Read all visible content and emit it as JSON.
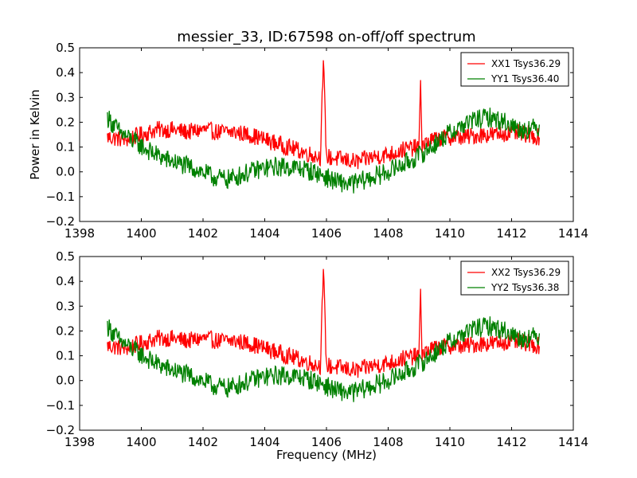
{
  "figure": {
    "title": "messier_33, ID:67598 on-off/off spectrum"
  },
  "chart_data": [
    {
      "type": "line",
      "title": "messier_33, ID:67598 on-off/off spectrum",
      "xlabel": "",
      "ylabel": "Power in Kelvin",
      "xlim": [
        1398,
        1414
      ],
      "ylim": [
        -0.2,
        0.5
      ],
      "xticks": [
        "1398",
        "1400",
        "1402",
        "1404",
        "1406",
        "1408",
        "1410",
        "1412",
        "1414"
      ],
      "yticks": [
        "−0.2",
        "−0.1",
        "0.0",
        "0.1",
        "0.2",
        "0.3",
        "0.4",
        "0.5"
      ],
      "grid": false,
      "legend_position": "top-right",
      "series": [
        {
          "name": "XX1 Tsys36.29",
          "color": "#ff0000",
          "x": [
            1398.9,
            1399.5,
            1400.0,
            1400.5,
            1401.0,
            1401.5,
            1402.0,
            1402.5,
            1403.0,
            1403.5,
            1404.0,
            1404.5,
            1405.0,
            1405.5,
            1405.8,
            1405.9,
            1406.0,
            1406.5,
            1407.0,
            1407.5,
            1408.0,
            1408.5,
            1409.0,
            1409.05,
            1409.1,
            1409.5,
            1410.0,
            1410.5,
            1411.0,
            1411.5,
            1412.0,
            1412.5,
            1412.9
          ],
          "y": [
            0.14,
            0.13,
            0.15,
            0.17,
            0.17,
            0.16,
            0.17,
            0.16,
            0.16,
            0.15,
            0.13,
            0.11,
            0.09,
            0.07,
            0.06,
            0.45,
            0.06,
            0.05,
            0.04,
            0.06,
            0.07,
            0.09,
            0.1,
            0.37,
            0.11,
            0.13,
            0.14,
            0.14,
            0.15,
            0.15,
            0.16,
            0.15,
            0.14
          ]
        },
        {
          "name": "YY1 Tsys36.40",
          "color": "#008000",
          "x": [
            1398.9,
            1399.3,
            1399.8,
            1400.3,
            1400.8,
            1401.3,
            1401.8,
            1402.3,
            1402.8,
            1403.3,
            1403.8,
            1404.3,
            1404.8,
            1405.3,
            1405.8,
            1406.3,
            1406.8,
            1407.3,
            1407.8,
            1408.3,
            1408.8,
            1409.3,
            1409.8,
            1410.3,
            1410.8,
            1411.3,
            1411.8,
            1412.3,
            1412.9
          ],
          "y": [
            0.22,
            0.16,
            0.12,
            0.08,
            0.05,
            0.03,
            0.01,
            -0.02,
            -0.03,
            -0.01,
            0.01,
            0.02,
            0.02,
            0.01,
            -0.01,
            -0.04,
            -0.05,
            -0.03,
            -0.01,
            0.02,
            0.05,
            0.09,
            0.14,
            0.18,
            0.21,
            0.22,
            0.2,
            0.17,
            0.18
          ]
        }
      ]
    },
    {
      "type": "line",
      "title": "",
      "xlabel": "Frequency (MHz)",
      "ylabel": "",
      "xlim": [
        1398,
        1414
      ],
      "ylim": [
        -0.2,
        0.5
      ],
      "xticks": [
        "1398",
        "1400",
        "1402",
        "1404",
        "1406",
        "1408",
        "1410",
        "1412",
        "1414"
      ],
      "yticks": [
        "−0.2",
        "−0.1",
        "0.0",
        "0.1",
        "0.2",
        "0.3",
        "0.4",
        "0.5"
      ],
      "grid": false,
      "legend_position": "top-right",
      "series": [
        {
          "name": "XX2 Tsys36.29",
          "color": "#ff0000",
          "x": [
            1398.9,
            1399.5,
            1400.0,
            1400.5,
            1401.0,
            1401.5,
            1402.0,
            1402.5,
            1403.0,
            1403.5,
            1404.0,
            1404.5,
            1405.0,
            1405.5,
            1405.8,
            1405.9,
            1406.0,
            1406.5,
            1407.0,
            1407.5,
            1408.0,
            1408.5,
            1409.0,
            1409.05,
            1409.1,
            1409.5,
            1410.0,
            1410.5,
            1411.0,
            1411.5,
            1412.0,
            1412.5,
            1412.9
          ],
          "y": [
            0.14,
            0.13,
            0.15,
            0.17,
            0.17,
            0.16,
            0.17,
            0.16,
            0.16,
            0.15,
            0.13,
            0.11,
            0.09,
            0.07,
            0.06,
            0.45,
            0.06,
            0.05,
            0.04,
            0.06,
            0.07,
            0.09,
            0.1,
            0.37,
            0.11,
            0.13,
            0.14,
            0.14,
            0.15,
            0.15,
            0.16,
            0.15,
            0.14
          ]
        },
        {
          "name": "YY2 Tsys36.38",
          "color": "#008000",
          "x": [
            1398.9,
            1399.3,
            1399.8,
            1400.3,
            1400.8,
            1401.3,
            1401.8,
            1402.3,
            1402.8,
            1403.3,
            1403.8,
            1404.3,
            1404.8,
            1405.3,
            1405.8,
            1406.3,
            1406.8,
            1407.3,
            1407.8,
            1408.3,
            1408.8,
            1409.3,
            1409.8,
            1410.3,
            1410.8,
            1411.3,
            1411.8,
            1412.3,
            1412.9
          ],
          "y": [
            0.22,
            0.16,
            0.12,
            0.08,
            0.05,
            0.03,
            0.01,
            -0.02,
            -0.03,
            -0.01,
            0.01,
            0.02,
            0.02,
            0.01,
            -0.01,
            -0.04,
            -0.05,
            -0.03,
            -0.01,
            0.02,
            0.05,
            0.09,
            0.14,
            0.18,
            0.21,
            0.22,
            0.2,
            0.17,
            0.18
          ]
        }
      ]
    }
  ]
}
